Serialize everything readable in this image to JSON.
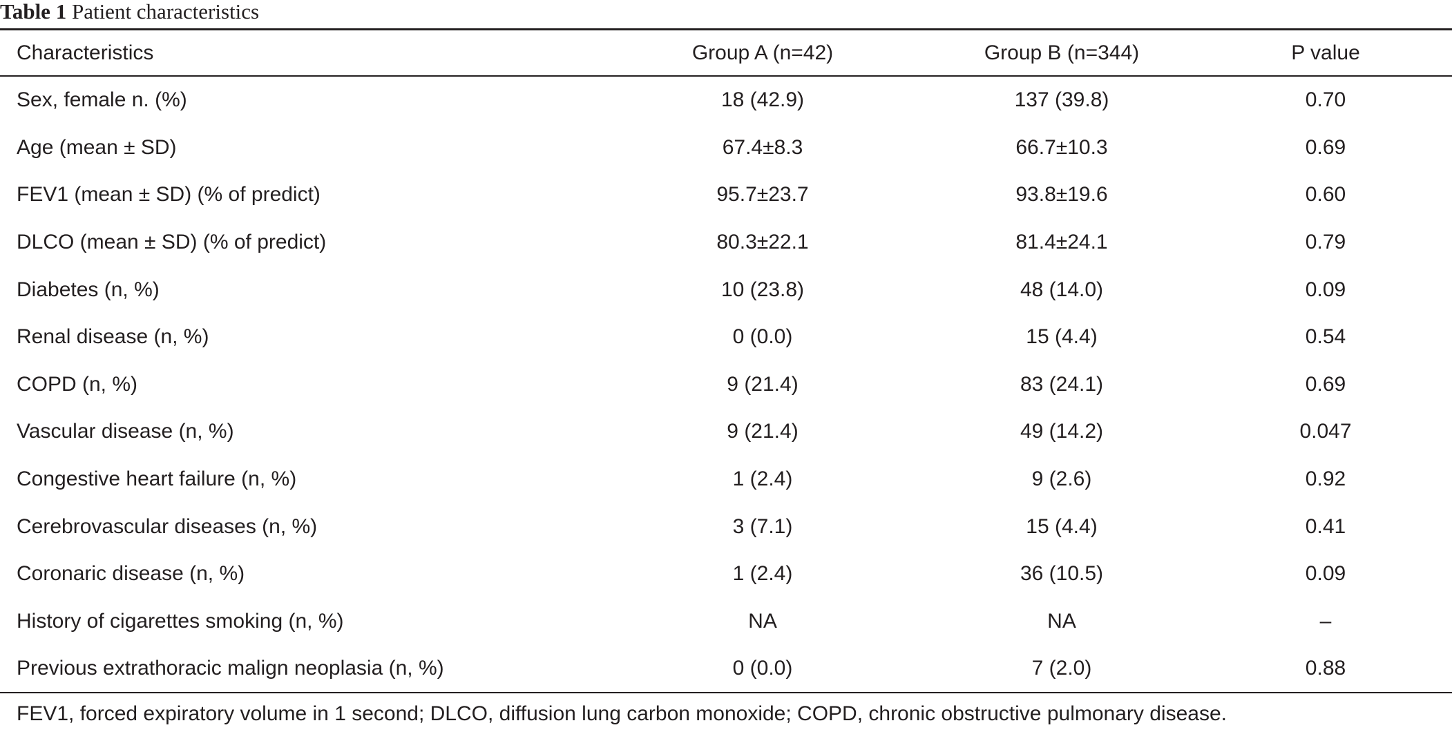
{
  "caption": {
    "label": "Table 1",
    "title": "Patient characteristics"
  },
  "table": {
    "columns": [
      "Characteristics",
      "Group A (n=42)",
      "Group B (n=344)",
      "P value"
    ],
    "rows": [
      [
        "Sex, female n. (%)",
        "18 (42.9)",
        "137 (39.8)",
        "0.70"
      ],
      [
        "Age (mean ± SD)",
        "67.4±8.3",
        "66.7±10.3",
        "0.69"
      ],
      [
        "FEV1 (mean ± SD) (% of predict)",
        "95.7±23.7",
        "93.8±19.6",
        "0.60"
      ],
      [
        "DLCO (mean ± SD) (% of predict)",
        "80.3±22.1",
        "81.4±24.1",
        "0.79"
      ],
      [
        "Diabetes (n, %)",
        "10 (23.8)",
        "48 (14.0)",
        "0.09"
      ],
      [
        "Renal disease (n, %)",
        "0 (0.0)",
        "15 (4.4)",
        "0.54"
      ],
      [
        "COPD (n, %)",
        "9 (21.4)",
        "83 (24.1)",
        "0.69"
      ],
      [
        "Vascular disease (n, %)",
        "9 (21.4)",
        "49 (14.2)",
        "0.047"
      ],
      [
        "Congestive heart failure (n, %)",
        "1 (2.4)",
        "9 (2.6)",
        "0.92"
      ],
      [
        "Cerebrovascular diseases (n, %)",
        "3 (7.1)",
        "15 (4.4)",
        "0.41"
      ],
      [
        "Coronaric disease (n, %)",
        "1 (2.4)",
        "36 (10.5)",
        "0.09"
      ],
      [
        "History of cigarettes smoking (n, %)",
        "NA",
        "NA",
        "–"
      ],
      [
        "Previous extrathoracic malign neoplasia (n, %)",
        "0 (0.0)",
        "7 (2.0)",
        "0.88"
      ]
    ]
  },
  "footnote": "FEV1, forced expiratory volume in 1 second; DLCO, diffusion lung carbon monoxide; COPD, chronic obstructive pulmonary disease."
}
